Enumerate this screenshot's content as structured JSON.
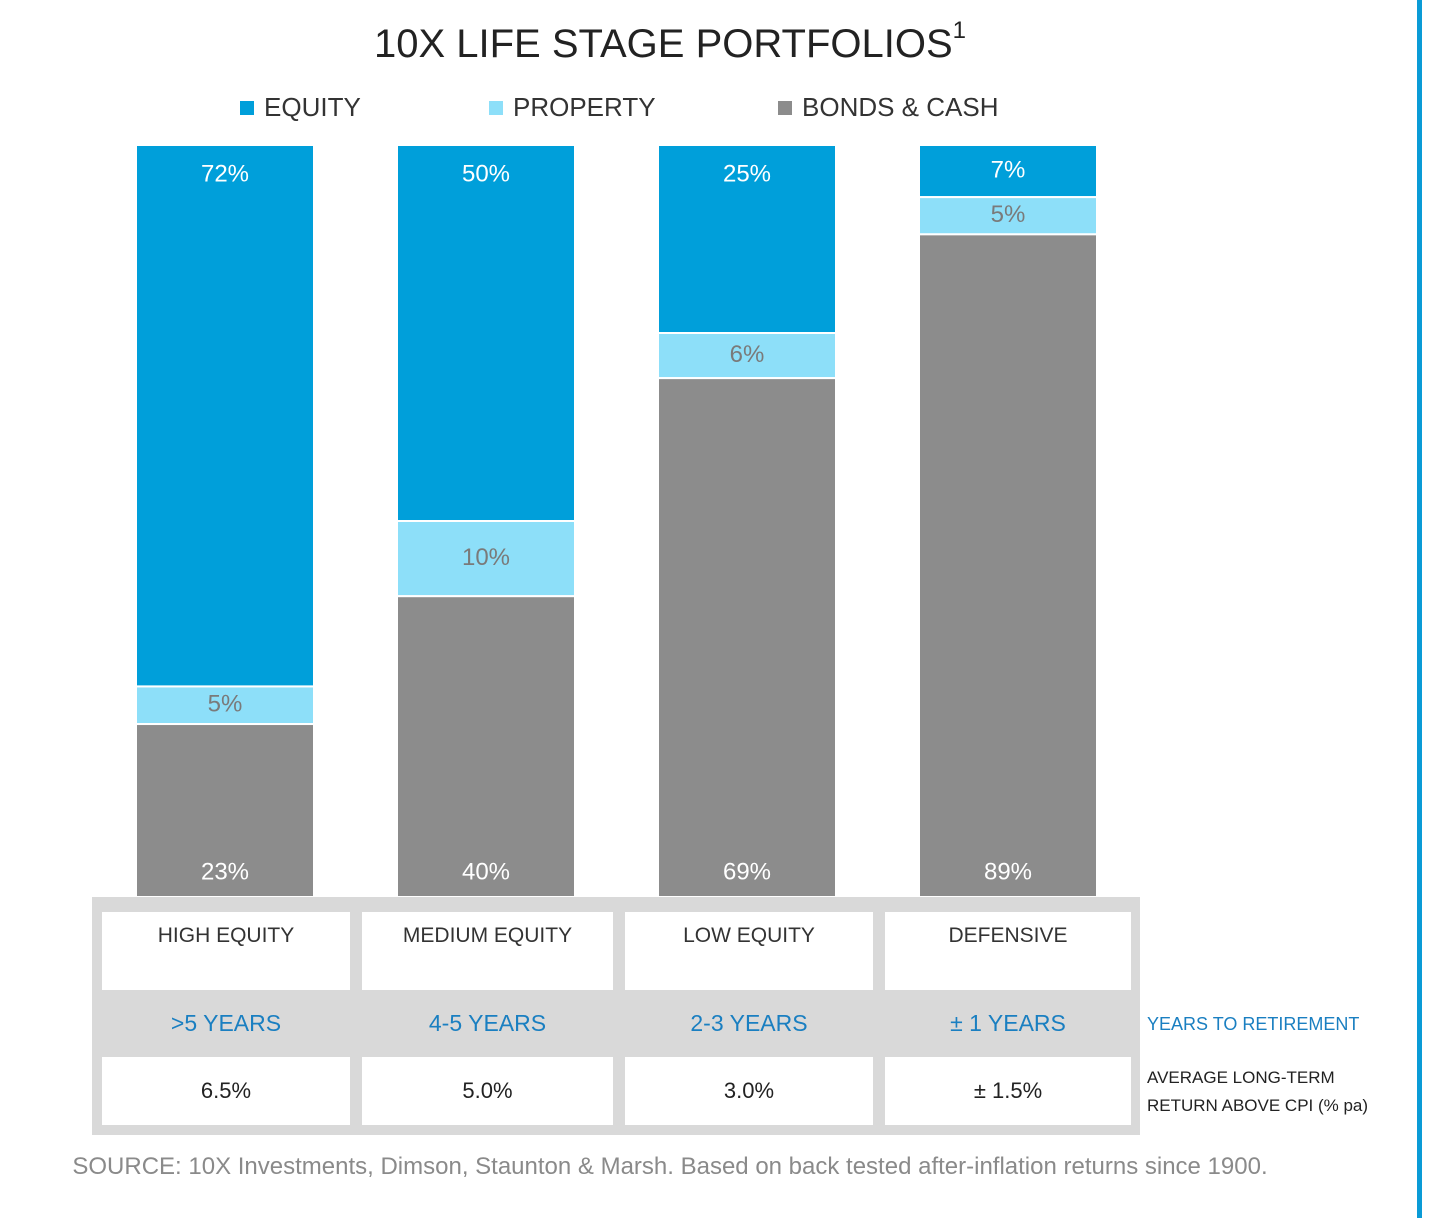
{
  "chart_data": {
    "type": "stacked_bar",
    "title": "10X LIFE STAGE PORTFOLIOS",
    "title_note": "1",
    "categories": [
      "HIGH EQUITY",
      "MEDIUM EQUITY",
      "LOW EQUITY",
      "DEFENSIVE"
    ],
    "series": [
      {
        "name": "EQUITY",
        "color": "#009fda",
        "label_color": "#ffffff",
        "values": [
          72,
          50,
          25,
          7
        ],
        "value_labels": [
          "72%",
          "50%",
          "25%",
          "7%"
        ]
      },
      {
        "name": "PROPERTY",
        "color": "#8ddff9",
        "label_color": "#7a7a7a",
        "values": [
          5,
          10,
          6,
          5
        ],
        "value_labels": [
          "5%",
          "10%",
          "6%",
          "5%"
        ]
      },
      {
        "name": "BONDS & CASH",
        "color": "#8c8c8c",
        "label_color": "#ffffff",
        "values": [
          23,
          40,
          69,
          89
        ],
        "value_labels": [
          "23%",
          "40%",
          "69%",
          "89%"
        ]
      }
    ]
  },
  "table": {
    "rows": [
      {
        "label": "YEARS TO RETIREMENT",
        "cells": [
          ">5 YEARS",
          "4-5 YEARS",
          "2-3 YEARS",
          "± 1 YEARS"
        ]
      },
      {
        "label": "AVERAGE LONG-TERM RETURN ABOVE CPI (% pa)",
        "cells": [
          "6.5%",
          "5.0%",
          "3.0%",
          "± 1.5%"
        ]
      }
    ]
  },
  "source": "SOURCE: 10X Investments, Dimson, Staunton & Marsh. Based on back tested after-inflation returns since 1900."
}
